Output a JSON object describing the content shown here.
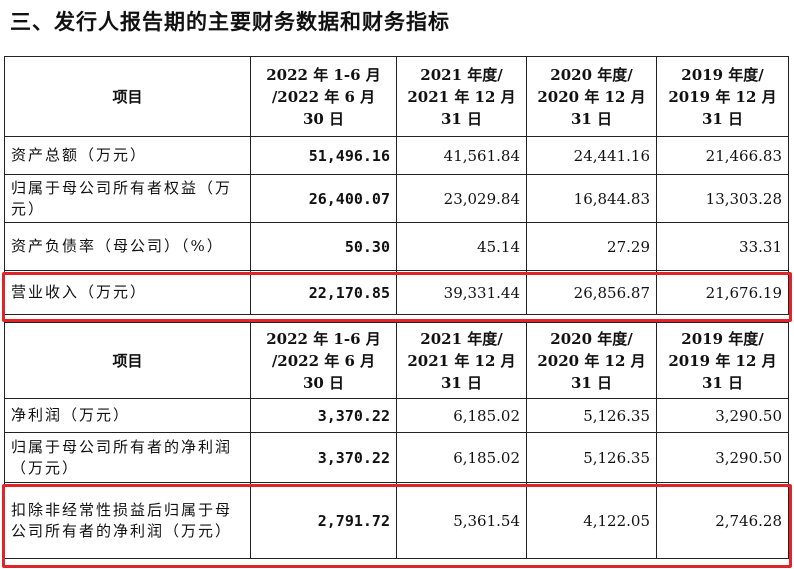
{
  "title": "三、发行人报告期的主要财务数据和财务指标",
  "headers": {
    "item": "项目",
    "p1_l1": "2022 年 1-6 月",
    "p1_l2": "/2022 年 6 月",
    "p1_l3": "30 日",
    "p2_l1": "2021 年度/",
    "p2_l2": "2021 年 12 月",
    "p2_l3": "31 日",
    "p3_l1": "2020 年度/",
    "p3_l2": "2020 年 12 月",
    "p3_l3": "31 日",
    "p4_l1": "2019 年度/",
    "p4_l2": "2019 年 12 月",
    "p4_l3": "31 日"
  },
  "table1": [
    {
      "label": "资产总额（万元）",
      "v1": "51,496.16",
      "v2": "41,561.84",
      "v3": "24,441.16",
      "v4": "21,466.83"
    },
    {
      "label": "归属于母公司所有者权益（万元）",
      "v1": "26,400.07",
      "v2": "23,029.84",
      "v3": "16,844.83",
      "v4": "13,303.28"
    },
    {
      "label": "资产负债率（母公司）（%）",
      "v1": "50.30",
      "v2": "45.14",
      "v3": "27.29",
      "v4": "33.31"
    },
    {
      "label": "营业收入（万元）",
      "v1": "22,170.85",
      "v2": "39,331.44",
      "v3": "26,856.87",
      "v4": "21,676.19"
    }
  ],
  "table2": [
    {
      "label": "净利润（万元）",
      "v1": "3,370.22",
      "v2": "6,185.02",
      "v3": "5,126.35",
      "v4": "3,290.50"
    },
    {
      "label": "归属于母公司所有者的净利润（万元）",
      "v1": "3,370.22",
      "v2": "6,185.02",
      "v3": "5,126.35",
      "v4": "3,290.50"
    },
    {
      "label": "扣除非经常性损益后归属于母公司所有者的净利润（万元）",
      "v1": "2,791.72",
      "v2": "5,361.54",
      "v3": "4,122.05",
      "v4": "2,746.28"
    }
  ],
  "highlight_color": "#e0242a"
}
